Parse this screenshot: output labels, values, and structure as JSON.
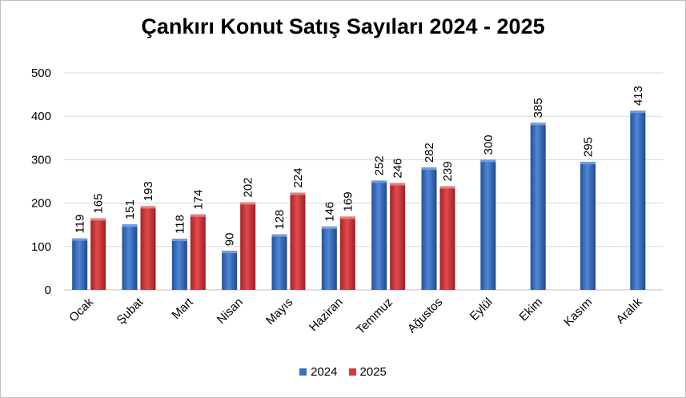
{
  "colors": {
    "series_2024": "#3a6fc4",
    "series_2025": "#d9393d",
    "grid": "#d9d9d9"
  },
  "chart_data": {
    "type": "bar",
    "title": "Çankırı Konut Satış Sayıları 2024 - 2025",
    "categories": [
      "Ocak",
      "Şubat",
      "Mart",
      "Nisan",
      "Mayıs",
      "Haziran",
      "Temmuz",
      "Ağustos",
      "Eylül",
      "Ekim",
      "Kasım",
      "Aralık"
    ],
    "series": [
      {
        "name": "2024",
        "values": [
          119,
          151,
          118,
          90,
          128,
          146,
          252,
          282,
          300,
          385,
          295,
          413
        ]
      },
      {
        "name": "2025",
        "values": [
          165,
          193,
          174,
          202,
          224,
          169,
          246,
          239,
          null,
          null,
          null,
          null
        ]
      }
    ],
    "ylim": [
      0,
      500
    ],
    "yticks": [
      0,
      100,
      200,
      300,
      400,
      500
    ],
    "grid": true,
    "legend_position": "bottom",
    "data_labels": true
  }
}
